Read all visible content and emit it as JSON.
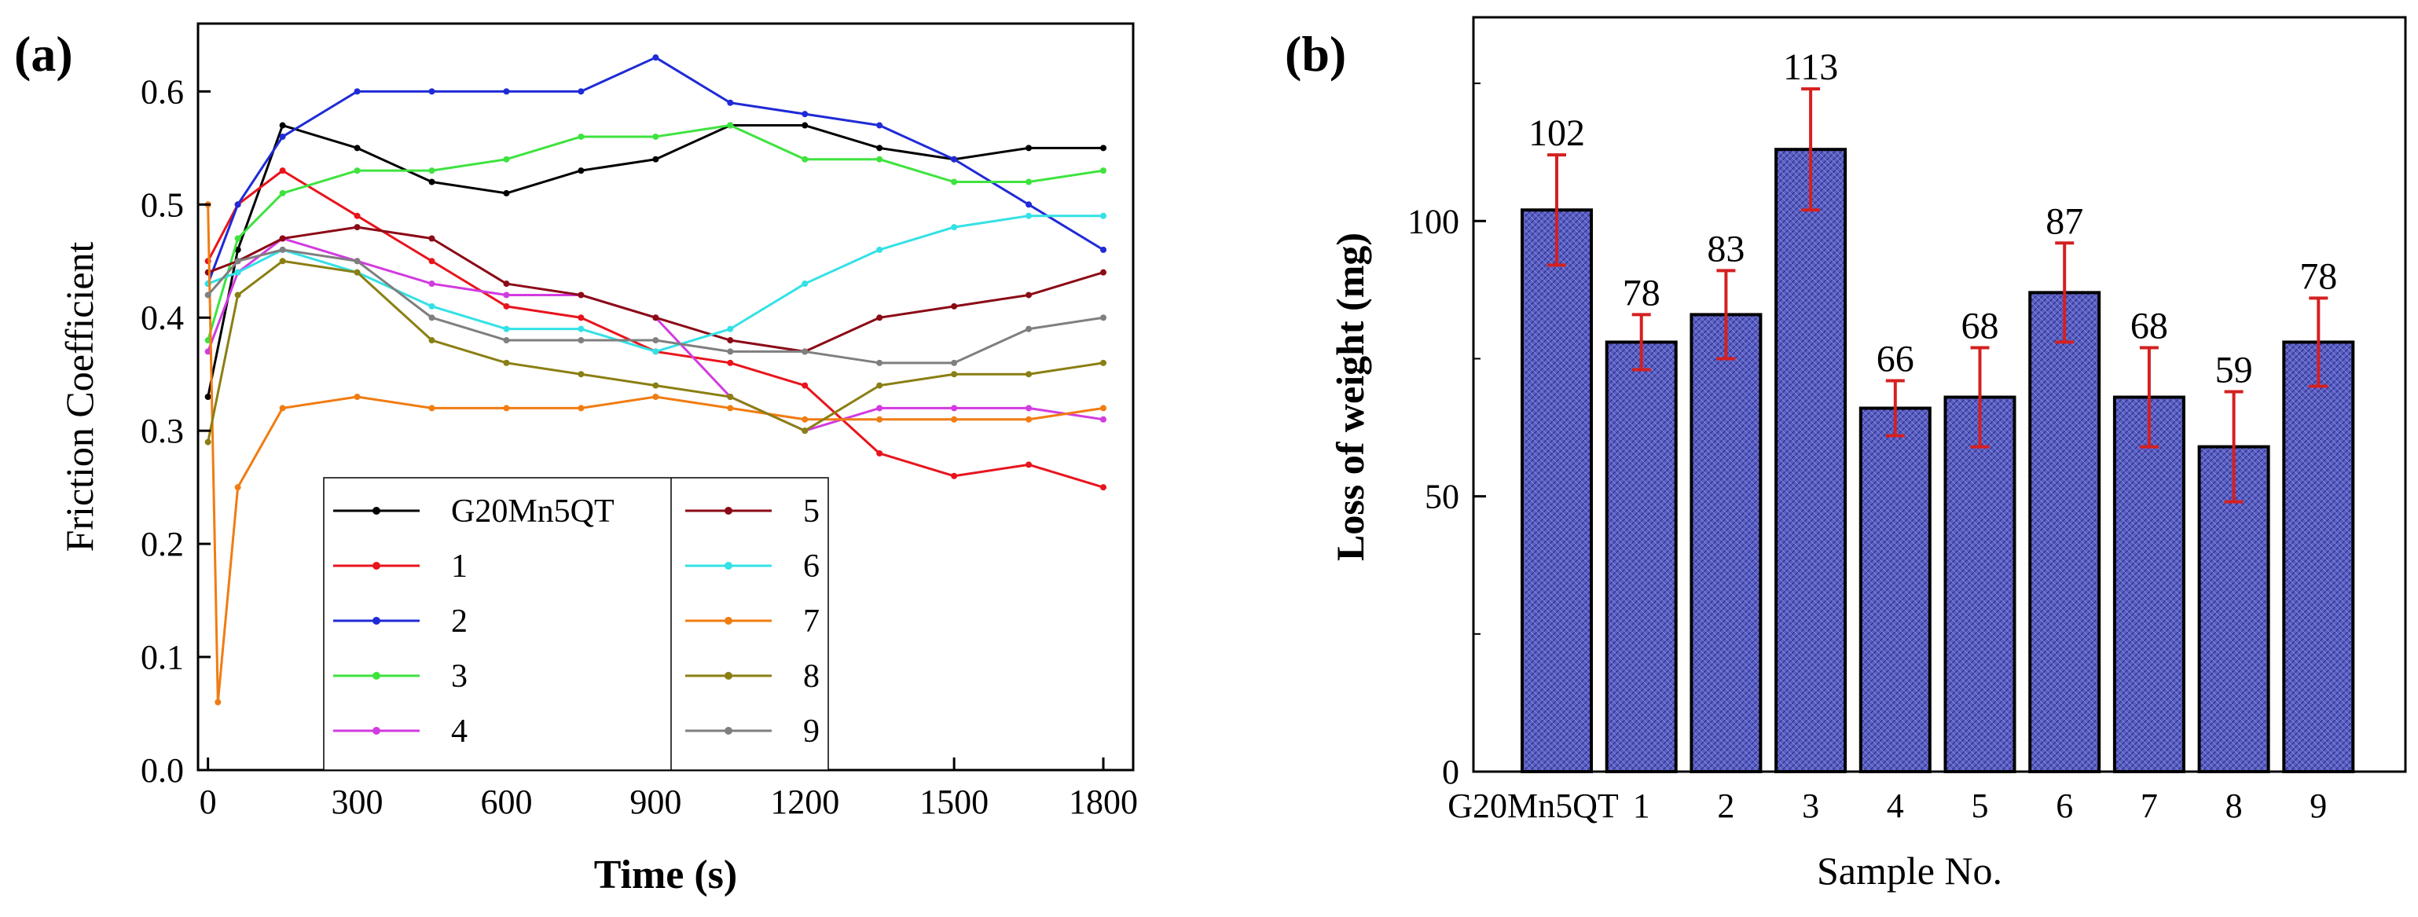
{
  "chart_data": [
    {
      "panel": "(a)",
      "type": "line",
      "title": "",
      "xlabel": "Time (s)",
      "ylabel": "Friction Coefficient",
      "xlim": [
        -20,
        1860
      ],
      "ylim": [
        0.0,
        0.66
      ],
      "x_ticks": [
        "0",
        "300",
        "600",
        "900",
        "1200",
        "1500",
        "1800"
      ],
      "y_ticks": [
        "0.0",
        "0.1",
        "0.2",
        "0.3",
        "0.4",
        "0.5",
        "0.6"
      ],
      "legend_position": "bottom-center",
      "series": [
        {
          "name": "G20Mn5QT",
          "color": "#000000",
          "x": [
            0,
            60,
            150,
            300,
            450,
            600,
            750,
            900,
            1050,
            1200,
            1350,
            1500,
            1650,
            1800
          ],
          "values": [
            0.33,
            0.46,
            0.57,
            0.55,
            0.52,
            0.51,
            0.53,
            0.54,
            0.57,
            0.57,
            0.55,
            0.54,
            0.55,
            0.55
          ]
        },
        {
          "name": "1",
          "color": "#e8141c",
          "x": [
            0,
            60,
            150,
            300,
            450,
            600,
            750,
            900,
            1050,
            1200,
            1350,
            1500,
            1650,
            1800
          ],
          "values": [
            0.45,
            0.5,
            0.53,
            0.49,
            0.45,
            0.41,
            0.4,
            0.37,
            0.36,
            0.34,
            0.28,
            0.26,
            0.27,
            0.25
          ]
        },
        {
          "name": "2",
          "color": "#1f2bd6",
          "x": [
            0,
            60,
            150,
            300,
            450,
            600,
            750,
            900,
            1050,
            1200,
            1350,
            1500,
            1650,
            1800
          ],
          "values": [
            0.43,
            0.5,
            0.56,
            0.6,
            0.6,
            0.6,
            0.6,
            0.63,
            0.59,
            0.58,
            0.57,
            0.54,
            0.5,
            0.46
          ]
        },
        {
          "name": "3",
          "color": "#3ee33e",
          "x": [
            0,
            60,
            150,
            300,
            450,
            600,
            750,
            900,
            1050,
            1200,
            1350,
            1500,
            1650,
            1800
          ],
          "values": [
            0.38,
            0.47,
            0.51,
            0.53,
            0.53,
            0.54,
            0.56,
            0.56,
            0.57,
            0.54,
            0.54,
            0.52,
            0.52,
            0.53
          ]
        },
        {
          "name": "4",
          "color": "#d23be0",
          "x": [
            0,
            60,
            150,
            300,
            450,
            600,
            750,
            900,
            1050,
            1200,
            1350,
            1500,
            1650,
            1800
          ],
          "values": [
            0.37,
            0.44,
            0.47,
            0.45,
            0.43,
            0.42,
            0.42,
            0.4,
            0.33,
            0.3,
            0.32,
            0.32,
            0.32,
            0.31
          ]
        },
        {
          "name": "5",
          "color": "#8b0a16",
          "x": [
            0,
            60,
            150,
            300,
            450,
            600,
            750,
            900,
            1050,
            1200,
            1350,
            1500,
            1650,
            1800
          ],
          "values": [
            0.44,
            0.45,
            0.47,
            0.48,
            0.47,
            0.43,
            0.42,
            0.4,
            0.38,
            0.37,
            0.4,
            0.41,
            0.42,
            0.44
          ]
        },
        {
          "name": "6",
          "color": "#33e1e6",
          "x": [
            0,
            60,
            150,
            300,
            450,
            600,
            750,
            900,
            1050,
            1200,
            1350,
            1500,
            1650,
            1800
          ],
          "values": [
            0.43,
            0.44,
            0.46,
            0.44,
            0.41,
            0.39,
            0.39,
            0.37,
            0.39,
            0.43,
            0.46,
            0.48,
            0.49,
            0.49
          ]
        },
        {
          "name": "7",
          "color": "#f07c12",
          "x": [
            0,
            20,
            60,
            150,
            300,
            450,
            600,
            750,
            900,
            1050,
            1200,
            1350,
            1500,
            1650,
            1800
          ],
          "values": [
            0.5,
            0.06,
            0.25,
            0.32,
            0.33,
            0.32,
            0.32,
            0.32,
            0.33,
            0.32,
            0.31,
            0.31,
            0.31,
            0.31,
            0.32
          ]
        },
        {
          "name": "8",
          "color": "#8a7f13",
          "x": [
            0,
            60,
            150,
            300,
            450,
            600,
            750,
            900,
            1050,
            1200,
            1350,
            1500,
            1650,
            1800
          ],
          "values": [
            0.29,
            0.42,
            0.45,
            0.44,
            0.38,
            0.36,
            0.35,
            0.34,
            0.33,
            0.3,
            0.34,
            0.35,
            0.35,
            0.36
          ]
        },
        {
          "name": "9",
          "color": "#7f7f7f",
          "x": [
            0,
            60,
            150,
            300,
            450,
            600,
            750,
            900,
            1050,
            1200,
            1350,
            1500,
            1650,
            1800
          ],
          "values": [
            0.42,
            0.45,
            0.46,
            0.45,
            0.4,
            0.38,
            0.38,
            0.38,
            0.37,
            0.37,
            0.36,
            0.36,
            0.39,
            0.4
          ]
        }
      ]
    },
    {
      "panel": "(b)",
      "type": "bar",
      "title": "",
      "xlabel": "Sample No.",
      "ylabel": "Loss of weight (mg)",
      "ylim": [
        0,
        137
      ],
      "y_ticks": [
        "0",
        "50",
        "100"
      ],
      "categories": [
        "G20Mn5QT",
        "1",
        "2",
        "3",
        "4",
        "5",
        "6",
        "7",
        "8",
        "9"
      ],
      "values": [
        102,
        78,
        83,
        113,
        66,
        68,
        87,
        68,
        59,
        78
      ],
      "value_labels": [
        "102",
        "78",
        "83",
        "113",
        "66",
        "68",
        "87",
        "68",
        "59",
        "78"
      ],
      "error": [
        10,
        5,
        8,
        11,
        5,
        9,
        9,
        9,
        10,
        8
      ],
      "bar_color": "#5a5fc2",
      "error_color": "#d42020"
    }
  ]
}
